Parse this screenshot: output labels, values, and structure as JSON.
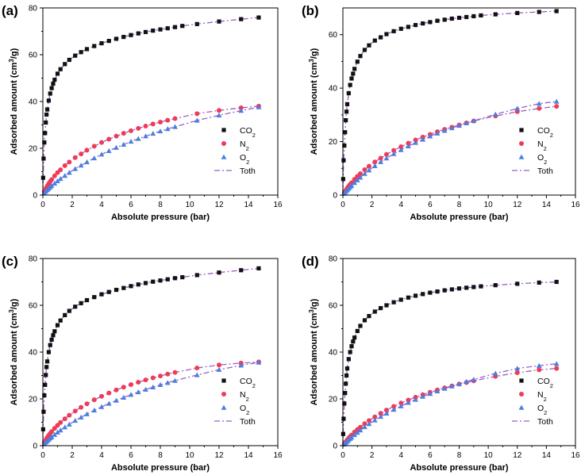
{
  "legend_labels": [
    "CO2",
    "N2",
    "O2",
    "Toth"
  ],
  "colors": {
    "co2": "#111111",
    "n2": "#ee3b57",
    "o2": "#4a7fe0",
    "toth": "#9b5fc6",
    "axis": "#000000"
  },
  "chart_data": [
    {
      "panel": "(a)",
      "type": "scatter",
      "xlabel": "Absolute pressure (bar)",
      "ylabel": "Adsorbed amount (cm3/g)",
      "xlim": [
        0,
        16
      ],
      "ylim": [
        0,
        80
      ],
      "xticks": [
        0,
        2,
        4,
        6,
        8,
        10,
        12,
        14,
        16
      ],
      "yticks": [
        0,
        20,
        40,
        60,
        80
      ],
      "legend": "center-right",
      "series": [
        {
          "name": "CO2",
          "marker": "square",
          "x": [
            0.02,
            0.05,
            0.1,
            0.15,
            0.2,
            0.25,
            0.3,
            0.4,
            0.5,
            0.6,
            0.7,
            0.8,
            1.0,
            1.2,
            1.5,
            1.8,
            2.2,
            2.6,
            3.0,
            3.5,
            4.0,
            4.5,
            5.0,
            5.5,
            6.0,
            6.5,
            7.0,
            7.5,
            8.0,
            8.5,
            9.0,
            9.5,
            10.5,
            12.0,
            13.5,
            14.7
          ],
          "y": [
            7.4,
            15.6,
            22.5,
            26.5,
            31.0,
            34.4,
            36.6,
            40.4,
            43.4,
            45.7,
            47.6,
            49.3,
            51.9,
            53.8,
            56.0,
            57.8,
            59.6,
            61.1,
            62.4,
            63.7,
            64.9,
            65.9,
            66.8,
            67.6,
            68.4,
            69.1,
            69.7,
            70.3,
            70.8,
            71.3,
            71.8,
            72.3,
            73.1,
            74.2,
            75.2,
            75.9
          ]
        },
        {
          "name": "N2",
          "marker": "circle",
          "x": [
            0.1,
            0.2,
            0.3,
            0.4,
            0.5,
            0.6,
            0.8,
            1.0,
            1.2,
            1.5,
            1.8,
            2.2,
            2.6,
            3.0,
            3.5,
            4.0,
            4.5,
            5.0,
            5.5,
            6.0,
            6.5,
            7.0,
            7.5,
            8.0,
            8.5,
            9.0,
            10.5,
            12.0,
            13.5,
            14.7
          ],
          "y": [
            1.5,
            2.8,
            3.9,
            4.9,
            5.8,
            6.6,
            8.2,
            9.6,
            10.8,
            12.6,
            14.1,
            16.0,
            17.6,
            19.2,
            20.9,
            22.5,
            23.9,
            25.2,
            26.4,
            27.5,
            28.5,
            29.5,
            30.4,
            31.2,
            32.0,
            32.7,
            34.8,
            36.2,
            37.3,
            38.0
          ]
        },
        {
          "name": "O2",
          "marker": "triangle",
          "x": [
            0.1,
            0.2,
            0.3,
            0.4,
            0.5,
            0.6,
            0.8,
            1.0,
            1.2,
            1.5,
            1.8,
            2.2,
            2.6,
            3.0,
            3.5,
            4.0,
            4.5,
            5.0,
            5.5,
            6.0,
            6.5,
            7.0,
            7.5,
            8.0,
            8.5,
            9.0,
            10.5,
            12.0,
            13.5,
            14.7
          ],
          "y": [
            0.8,
            1.5,
            2.2,
            2.8,
            3.4,
            4.0,
            5.0,
            6.0,
            7.0,
            8.3,
            9.6,
            11.2,
            12.7,
            14.1,
            15.8,
            17.4,
            18.9,
            20.3,
            21.6,
            22.9,
            24.1,
            25.2,
            26.3,
            27.3,
            28.3,
            29.2,
            31.9,
            34.1,
            36.1,
            37.6
          ]
        }
      ]
    },
    {
      "panel": "(b)",
      "type": "scatter",
      "xlabel": "Absolute pressure (bar)",
      "ylabel": "Adsorbed amount (cm3/g)",
      "xlim": [
        0,
        16
      ],
      "ylim": [
        0,
        70
      ],
      "xticks": [
        0,
        2,
        4,
        6,
        8,
        10,
        12,
        14,
        16
      ],
      "yticks": [
        0,
        20,
        40,
        60
      ],
      "legend": "center-right",
      "series": [
        {
          "name": "CO2",
          "marker": "square",
          "x": [
            0.02,
            0.05,
            0.1,
            0.15,
            0.2,
            0.25,
            0.3,
            0.4,
            0.5,
            0.6,
            0.7,
            0.8,
            1.0,
            1.2,
            1.5,
            1.8,
            2.2,
            2.6,
            3.0,
            3.5,
            4.0,
            4.5,
            5.0,
            5.5,
            6.0,
            6.5,
            7.0,
            7.5,
            8.0,
            8.5,
            9.0,
            9.5,
            10.5,
            12.0,
            13.5,
            14.7
          ],
          "y": [
            6.0,
            13.0,
            18.5,
            23.5,
            28.0,
            31.2,
            34.0,
            38.1,
            41.2,
            43.6,
            45.4,
            47.2,
            49.9,
            52.0,
            54.3,
            56.0,
            57.8,
            59.0,
            60.2,
            61.3,
            62.2,
            62.9,
            63.6,
            64.2,
            64.7,
            65.2,
            65.6,
            66.0,
            66.3,
            66.6,
            66.9,
            67.2,
            67.6,
            68.1,
            68.5,
            68.8
          ]
        },
        {
          "name": "N2",
          "marker": "circle",
          "x": [
            0.1,
            0.2,
            0.3,
            0.4,
            0.5,
            0.6,
            0.8,
            1.0,
            1.2,
            1.5,
            1.8,
            2.2,
            2.6,
            3.0,
            3.5,
            4.0,
            4.5,
            5.0,
            5.5,
            6.0,
            6.5,
            7.0,
            7.5,
            8.0,
            8.5,
            9.0,
            10.5,
            12.0,
            13.5,
            14.7
          ],
          "y": [
            1.0,
            1.8,
            2.6,
            3.3,
            4.0,
            4.6,
            5.9,
            7.0,
            8.0,
            9.5,
            10.8,
            12.4,
            13.8,
            15.2,
            16.7,
            18.1,
            19.4,
            20.6,
            21.7,
            22.7,
            23.7,
            24.6,
            25.4,
            26.2,
            27.0,
            27.7,
            29.6,
            31.2,
            32.4,
            33.2
          ]
        },
        {
          "name": "O2",
          "marker": "triangle",
          "x": [
            0.1,
            0.2,
            0.3,
            0.4,
            0.5,
            0.6,
            0.8,
            1.0,
            1.2,
            1.5,
            1.8,
            2.2,
            2.6,
            3.0,
            3.5,
            4.0,
            4.5,
            5.0,
            5.5,
            6.0,
            6.5,
            7.0,
            7.5,
            8.0,
            8.5,
            9.0,
            10.5,
            12.0,
            13.5,
            14.7
          ],
          "y": [
            0.6,
            1.2,
            1.8,
            2.4,
            3.0,
            3.5,
            4.6,
            5.6,
            6.6,
            8.0,
            9.3,
            10.9,
            12.4,
            13.8,
            15.4,
            16.9,
            18.3,
            19.6,
            20.8,
            22.0,
            23.1,
            24.1,
            25.1,
            26.0,
            26.9,
            27.8,
            30.2,
            32.4,
            34.2,
            35.0
          ]
        }
      ]
    },
    {
      "panel": "(c)",
      "type": "scatter",
      "xlabel": "Absolute pressure (bar)",
      "ylabel": "Adsorbed amount (cm3/g)",
      "xlim": [
        0,
        16
      ],
      "ylim": [
        0,
        80
      ],
      "xticks": [
        0,
        2,
        4,
        6,
        8,
        10,
        12,
        14,
        16
      ],
      "yticks": [
        0,
        20,
        40,
        60,
        80
      ],
      "legend": "center-right",
      "series": [
        {
          "name": "CO2",
          "marker": "square",
          "x": [
            0.02,
            0.05,
            0.1,
            0.15,
            0.2,
            0.25,
            0.3,
            0.4,
            0.5,
            0.6,
            0.7,
            0.8,
            1.0,
            1.2,
            1.5,
            1.8,
            2.2,
            2.6,
            3.0,
            3.5,
            4.0,
            4.5,
            5.0,
            5.5,
            6.0,
            6.5,
            7.0,
            7.5,
            8.0,
            8.5,
            9.0,
            9.5,
            10.5,
            12.0,
            13.5,
            14.7
          ],
          "y": [
            7.0,
            14.5,
            21.5,
            26.0,
            30.2,
            33.6,
            36.0,
            40.0,
            43.0,
            45.3,
            47.2,
            48.9,
            51.5,
            53.5,
            55.8,
            57.6,
            59.4,
            60.9,
            62.2,
            63.5,
            64.7,
            65.7,
            66.6,
            67.4,
            68.2,
            68.9,
            69.5,
            70.1,
            70.6,
            71.1,
            71.6,
            72.0,
            72.9,
            74.0,
            75.0,
            75.8
          ]
        },
        {
          "name": "N2",
          "marker": "circle",
          "x": [
            0.1,
            0.2,
            0.3,
            0.4,
            0.5,
            0.6,
            0.8,
            1.0,
            1.2,
            1.5,
            1.8,
            2.2,
            2.6,
            3.0,
            3.5,
            4.0,
            4.5,
            5.0,
            5.5,
            6.0,
            6.5,
            7.0,
            7.5,
            8.0,
            8.5,
            9.0,
            10.5,
            12.0,
            13.5,
            14.7
          ],
          "y": [
            1.3,
            2.5,
            3.5,
            4.4,
            5.2,
            6.0,
            7.4,
            8.7,
            9.9,
            11.5,
            13.0,
            14.8,
            16.4,
            17.9,
            19.6,
            21.1,
            22.5,
            23.8,
            25.0,
            26.1,
            27.1,
            28.1,
            29.0,
            29.8,
            30.6,
            31.3,
            33.2,
            34.5,
            35.3,
            35.8
          ]
        },
        {
          "name": "O2",
          "marker": "triangle",
          "x": [
            0.1,
            0.2,
            0.3,
            0.4,
            0.5,
            0.6,
            0.8,
            1.0,
            1.2,
            1.5,
            1.8,
            2.2,
            2.6,
            3.0,
            3.5,
            4.0,
            4.5,
            5.0,
            5.5,
            6.0,
            6.5,
            7.0,
            7.5,
            8.0,
            8.5,
            9.0,
            10.5,
            12.0,
            13.5,
            14.7
          ],
          "y": [
            0.7,
            1.4,
            2.0,
            2.6,
            3.2,
            3.7,
            4.7,
            5.7,
            6.6,
            7.9,
            9.1,
            10.7,
            12.1,
            13.5,
            15.1,
            16.6,
            18.0,
            19.3,
            20.6,
            21.8,
            22.9,
            24.0,
            25.0,
            26.0,
            26.9,
            27.8,
            30.2,
            32.5,
            34.3,
            35.6
          ]
        }
      ]
    },
    {
      "panel": "(d)",
      "type": "scatter",
      "xlabel": "Absolute pressure (bar)",
      "ylabel": "Adsorbed amount (cm3/g)",
      "xlim": [
        0,
        16
      ],
      "ylim": [
        0,
        80
      ],
      "xticks": [
        0,
        2,
        4,
        6,
        8,
        10,
        12,
        14,
        16
      ],
      "yticks": [
        0,
        20,
        40,
        60,
        80
      ],
      "legend": "center-right",
      "series": [
        {
          "name": "CO2",
          "marker": "square",
          "x": [
            0.02,
            0.05,
            0.1,
            0.15,
            0.2,
            0.25,
            0.3,
            0.4,
            0.5,
            0.6,
            0.7,
            0.8,
            1.0,
            1.2,
            1.5,
            1.8,
            2.2,
            2.6,
            3.0,
            3.5,
            4.0,
            4.5,
            5.0,
            5.5,
            6.0,
            6.5,
            7.0,
            7.5,
            8.0,
            8.5,
            9.0,
            9.5,
            10.5,
            12.0,
            13.5,
            14.7
          ],
          "y": [
            5.0,
            11.5,
            18.0,
            22.5,
            26.5,
            30.0,
            33.0,
            37.0,
            40.0,
            42.5,
            44.5,
            46.2,
            49.0,
            51.2,
            53.6,
            55.4,
            57.3,
            58.8,
            60.0,
            61.3,
            62.4,
            63.3,
            64.1,
            64.8,
            65.4,
            65.9,
            66.4,
            66.8,
            67.2,
            67.5,
            67.8,
            68.1,
            68.6,
            69.2,
            69.7,
            70.0
          ]
        },
        {
          "name": "N2",
          "marker": "circle",
          "x": [
            0.1,
            0.2,
            0.3,
            0.4,
            0.5,
            0.6,
            0.8,
            1.0,
            1.2,
            1.5,
            1.8,
            2.2,
            2.6,
            3.0,
            3.5,
            4.0,
            4.5,
            5.0,
            5.5,
            6.0,
            6.5,
            7.0,
            7.5,
            8.0,
            8.5,
            9.0,
            10.5,
            12.0,
            13.5,
            14.7
          ],
          "y": [
            0.9,
            1.7,
            2.5,
            3.2,
            3.9,
            4.5,
            5.8,
            6.9,
            7.9,
            9.4,
            10.7,
            12.3,
            13.8,
            15.2,
            16.8,
            18.2,
            19.5,
            20.7,
            21.8,
            22.8,
            23.8,
            24.7,
            25.5,
            26.3,
            27.0,
            27.7,
            29.6,
            31.2,
            32.4,
            33.0
          ]
        },
        {
          "name": "O2",
          "marker": "triangle",
          "x": [
            0.1,
            0.2,
            0.3,
            0.4,
            0.5,
            0.6,
            0.8,
            1.0,
            1.2,
            1.5,
            1.8,
            2.2,
            2.6,
            3.0,
            3.5,
            4.0,
            4.5,
            5.0,
            5.5,
            6.0,
            6.5,
            7.0,
            7.5,
            8.0,
            8.5,
            9.0,
            10.5,
            12.0,
            13.5,
            14.7
          ],
          "y": [
            0.6,
            1.2,
            1.8,
            2.4,
            3.0,
            3.5,
            4.6,
            5.6,
            6.6,
            8.0,
            9.3,
            10.9,
            12.4,
            13.8,
            15.4,
            16.9,
            18.4,
            19.7,
            21.0,
            22.2,
            23.3,
            24.4,
            25.4,
            26.4,
            27.4,
            28.3,
            30.9,
            33.0,
            34.2,
            35.0
          ]
        }
      ]
    }
  ]
}
